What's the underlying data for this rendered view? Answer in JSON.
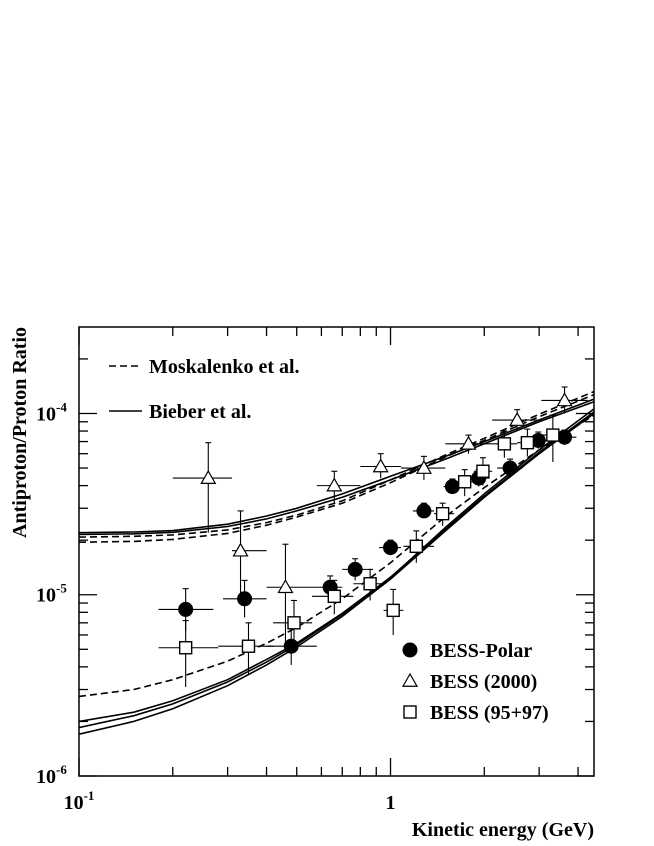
{
  "chart_data": {
    "type": "scatter",
    "xlabel": "Kinetic energy (GeV)",
    "ylabel": "Antiproton/Proton Ratio",
    "x_scale": "log",
    "y_scale": "log",
    "xlim": [
      0.1,
      4.5
    ],
    "ylim": [
      1e-06,
      0.0003
    ],
    "x_ticks": [
      {
        "value": 0.1,
        "base": "10",
        "exp": "-1"
      },
      {
        "value": 1,
        "base": "1",
        "exp": ""
      }
    ],
    "y_ticks": [
      {
        "value": 1e-06,
        "base": "10",
        "exp": "-6"
      },
      {
        "value": 1e-05,
        "base": "10",
        "exp": "-5"
      },
      {
        "value": 0.0001,
        "base": "10",
        "exp": "-4"
      }
    ],
    "grid": false,
    "legend_lines": [
      {
        "name": "Moskalenko et al.",
        "style": "dashed"
      },
      {
        "name": "Bieber et al.",
        "style": "solid"
      }
    ],
    "legend_points": [
      {
        "name": "BESS-Polar",
        "marker": "filled-circle"
      },
      {
        "name": "BESS (2000)",
        "marker": "open-triangle"
      },
      {
        "name": "BESS (95+97)",
        "marker": "open-square"
      }
    ],
    "curves": [
      {
        "style": "solid",
        "x": [
          0.1,
          0.15,
          0.2,
          0.3,
          0.4,
          0.5,
          0.7,
          1.0,
          1.5,
          2.0,
          3.0,
          4.5
        ],
        "y": [
          2.2e-05,
          2.22e-05,
          2.26e-05,
          2.45e-05,
          2.72e-05,
          3e-05,
          3.6e-05,
          4.5e-05,
          5.8e-05,
          7e-05,
          9.2e-05,
          0.00012
        ]
      },
      {
        "style": "solid",
        "x": [
          0.1,
          0.15,
          0.2,
          0.3,
          0.4,
          0.5,
          0.7,
          1.0,
          1.5,
          2.0,
          3.0,
          4.5
        ],
        "y": [
          2.15e-05,
          2.17e-05,
          2.21e-05,
          2.38e-05,
          2.62e-05,
          2.9e-05,
          3.45e-05,
          4.3e-05,
          5.6e-05,
          6.8e-05,
          9e-05,
          0.000116
        ]
      },
      {
        "style": "dashed",
        "x": [
          0.1,
          0.15,
          0.2,
          0.3,
          0.4,
          0.5,
          0.7,
          1.0,
          1.5,
          2.0,
          3.0,
          4.5
        ],
        "y": [
          2.08e-05,
          2.1e-05,
          2.14e-05,
          2.28e-05,
          2.5e-05,
          2.75e-05,
          3.3e-05,
          4.3e-05,
          5.9e-05,
          7.3e-05,
          9.9e-05,
          0.000132
        ]
      },
      {
        "style": "dashed",
        "x": [
          0.1,
          0.15,
          0.2,
          0.3,
          0.4,
          0.5,
          0.7,
          1.0,
          1.5,
          2.0,
          3.0,
          4.5
        ],
        "y": [
          1.95e-05,
          1.97e-05,
          2.02e-05,
          2.18e-05,
          2.42e-05,
          2.68e-05,
          3.2e-05,
          4.15e-05,
          5.75e-05,
          7.1e-05,
          9.6e-05,
          0.000127
        ]
      },
      {
        "style": "dashed",
        "x": [
          0.1,
          0.15,
          0.2,
          0.3,
          0.4,
          0.5,
          0.7,
          1.0,
          1.5,
          2.0,
          3.0,
          4.5
        ],
        "y": [
          2.75e-06,
          3e-06,
          3.4e-06,
          4.3e-06,
          5.4e-06,
          6.6e-06,
          9.5e-06,
          1.5e-05,
          2.7e-05,
          3.9e-05,
          6.3e-05,
          9.8e-05
        ]
      },
      {
        "style": "solid",
        "x": [
          0.1,
          0.15,
          0.2,
          0.3,
          0.4,
          0.5,
          0.7,
          1.0,
          1.5,
          2.0,
          3.0,
          4.5
        ],
        "y": [
          2e-06,
          2.25e-06,
          2.6e-06,
          3.4e-06,
          4.4e-06,
          5.4e-06,
          7.9e-06,
          1.25e-05,
          2.3e-05,
          3.5e-05,
          6.1e-05,
          0.000102
        ]
      },
      {
        "style": "solid",
        "x": [
          0.1,
          0.15,
          0.2,
          0.3,
          0.4,
          0.5,
          0.7,
          1.0,
          1.5,
          2.0,
          3.0,
          4.5
        ],
        "y": [
          1.7e-06,
          2e-06,
          2.35e-06,
          3.15e-06,
          4.1e-06,
          5.15e-06,
          7.6e-06,
          1.22e-05,
          2.25e-05,
          3.45e-05,
          6e-05,
          0.0001
        ]
      },
      {
        "style": "solid",
        "x": [
          0.1,
          0.15,
          0.2,
          0.3,
          0.4,
          0.5,
          0.7,
          1.0,
          1.5,
          2.0,
          3.0,
          4.5
        ],
        "y": [
          1.85e-06,
          2.15e-06,
          2.5e-06,
          3.3e-06,
          4.25e-06,
          5.3e-06,
          7.8e-06,
          1.24e-05,
          2.35e-05,
          3.6e-05,
          6.3e-05,
          0.000106
        ]
      }
    ],
    "series": [
      {
        "name": "BESS-Polar",
        "marker": "filled-circle",
        "points": [
          {
            "x": 0.22,
            "y": 8.3e-06,
            "xlo": 0.18,
            "xhi": 0.27,
            "ylo": 6.3e-06,
            "yhi": 1.08e-05
          },
          {
            "x": 0.34,
            "y": 9.5e-06,
            "xlo": 0.29,
            "xhi": 0.4,
            "ylo": 7.5e-06,
            "yhi": 1.2e-05
          },
          {
            "x": 0.48,
            "y": 5.2e-06,
            "xlo": 0.4,
            "xhi": 0.58,
            "ylo": 4.1e-06,
            "yhi": 6.5e-06
          },
          {
            "x": 0.64,
            "y": 1.1e-05,
            "xlo": 0.58,
            "xhi": 0.7,
            "ylo": 9.5e-06,
            "yhi": 1.27e-05
          },
          {
            "x": 0.77,
            "y": 1.38e-05,
            "xlo": 0.7,
            "xhi": 0.84,
            "ylo": 1.2e-05,
            "yhi": 1.58e-05
          },
          {
            "x": 1.0,
            "y": 1.82e-05,
            "xlo": 0.92,
            "xhi": 1.08,
            "ylo": 1.65e-05,
            "yhi": 2e-05
          },
          {
            "x": 1.28,
            "y": 2.9e-05,
            "xlo": 1.18,
            "xhi": 1.38,
            "ylo": 2.65e-05,
            "yhi": 3.2e-05
          },
          {
            "x": 1.58,
            "y": 3.95e-05,
            "xlo": 1.48,
            "xhi": 1.7,
            "ylo": 3.6e-05,
            "yhi": 4.35e-05
          },
          {
            "x": 1.92,
            "y": 4.4e-05,
            "xlo": 1.78,
            "xhi": 2.08,
            "ylo": 3.95e-05,
            "yhi": 4.9e-05
          },
          {
            "x": 2.42,
            "y": 5e-05,
            "xlo": 2.2,
            "xhi": 2.65,
            "ylo": 4.5e-05,
            "yhi": 5.6e-05
          },
          {
            "x": 2.98,
            "y": 7.1e-05,
            "xlo": 2.75,
            "xhi": 3.25,
            "ylo": 6.4e-05,
            "yhi": 7.9e-05
          },
          {
            "x": 3.62,
            "y": 7.4e-05,
            "xlo": 3.35,
            "xhi": 3.95,
            "ylo": 6.7e-05,
            "yhi": 8.1e-05
          }
        ]
      },
      {
        "name": "BESS (2000)",
        "marker": "open-triangle",
        "points": [
          {
            "x": 0.26,
            "y": 4.4e-05,
            "xlo": 0.2,
            "xhi": 0.31,
            "ylo": 2.2e-05,
            "yhi": 6.9e-05
          },
          {
            "x": 0.33,
            "y": 1.75e-05,
            "xlo": 0.31,
            "xhi": 0.4,
            "ylo": 1e-05,
            "yhi": 2.9e-05
          },
          {
            "x": 0.46,
            "y": 1.1e-05,
            "xlo": 0.4,
            "xhi": 0.58,
            "ylo": 5.4e-06,
            "yhi": 1.9e-05
          },
          {
            "x": 0.66,
            "y": 4e-05,
            "xlo": 0.58,
            "xhi": 0.8,
            "ylo": 3.2e-05,
            "yhi": 4.8e-05
          },
          {
            "x": 0.93,
            "y": 5.1e-05,
            "xlo": 0.8,
            "xhi": 1.08,
            "ylo": 4.4e-05,
            "yhi": 6e-05
          },
          {
            "x": 1.28,
            "y": 5e-05,
            "xlo": 1.08,
            "xhi": 1.5,
            "ylo": 4.3e-05,
            "yhi": 5.8e-05
          },
          {
            "x": 1.78,
            "y": 6.8e-05,
            "xlo": 1.5,
            "xhi": 2.12,
            "ylo": 6e-05,
            "yhi": 7.6e-05
          },
          {
            "x": 2.55,
            "y": 9.2e-05,
            "xlo": 2.12,
            "xhi": 3.05,
            "ylo": 8e-05,
            "yhi": 0.000105
          },
          {
            "x": 3.62,
            "y": 0.000118,
            "xlo": 3.05,
            "xhi": 4.3,
            "ylo": 0.0001,
            "yhi": 0.00014
          }
        ]
      },
      {
        "name": "BESS (95+97)",
        "marker": "open-square",
        "points": [
          {
            "x": 0.22,
            "y": 5.1e-06,
            "xlo": 0.18,
            "xhi": 0.28,
            "ylo": 3.1e-06,
            "yhi": 7.2e-06
          },
          {
            "x": 0.35,
            "y": 5.2e-06,
            "xlo": 0.28,
            "xhi": 0.42,
            "ylo": 3.6e-06,
            "yhi": 7e-06
          },
          {
            "x": 0.49,
            "y": 7e-06,
            "xlo": 0.42,
            "xhi": 0.56,
            "ylo": 4.9e-06,
            "yhi": 9.3e-06
          },
          {
            "x": 0.66,
            "y": 9.8e-06,
            "xlo": 0.56,
            "xhi": 0.76,
            "ylo": 7.8e-06,
            "yhi": 1.2e-05
          },
          {
            "x": 0.86,
            "y": 1.15e-05,
            "xlo": 0.76,
            "xhi": 0.95,
            "ylo": 9.3e-06,
            "yhi": 1.38e-05
          },
          {
            "x": 1.02,
            "y": 8.2e-06,
            "xlo": 0.95,
            "xhi": 1.1,
            "ylo": 6e-06,
            "yhi": 1.07e-05
          },
          {
            "x": 1.21,
            "y": 1.85e-05,
            "xlo": 1.1,
            "xhi": 1.38,
            "ylo": 1.5e-05,
            "yhi": 2.25e-05
          },
          {
            "x": 1.47,
            "y": 2.8e-05,
            "xlo": 1.38,
            "xhi": 1.6,
            "ylo": 2.4e-05,
            "yhi": 3.2e-05
          },
          {
            "x": 1.73,
            "y": 4.2e-05,
            "xlo": 1.6,
            "xhi": 1.85,
            "ylo": 3.5e-05,
            "yhi": 4.9e-05
          },
          {
            "x": 1.98,
            "y": 4.8e-05,
            "xlo": 1.85,
            "xhi": 2.12,
            "ylo": 4e-05,
            "yhi": 5.7e-05
          },
          {
            "x": 2.32,
            "y": 6.8e-05,
            "xlo": 2.12,
            "xhi": 2.55,
            "ylo": 5.7e-05,
            "yhi": 8e-05
          },
          {
            "x": 2.75,
            "y": 6.9e-05,
            "xlo": 2.55,
            "xhi": 2.98,
            "ylo": 5.8e-05,
            "yhi": 8.2e-05
          },
          {
            "x": 3.32,
            "y": 7.6e-05,
            "xlo": 2.98,
            "xhi": 3.7,
            "ylo": 5.4e-05,
            "yhi": 9.8e-05
          }
        ]
      }
    ]
  }
}
